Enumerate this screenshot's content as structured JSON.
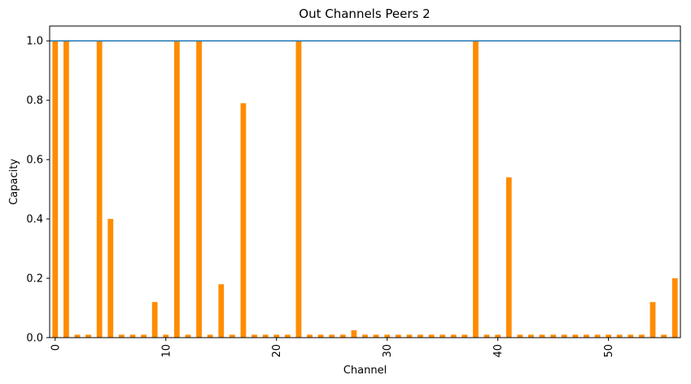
{
  "chart_data": {
    "type": "bar",
    "title": "Out Channels Peers 2",
    "xlabel": "Channel",
    "ylabel": "Capacity",
    "categories": [
      0,
      1,
      2,
      3,
      4,
      5,
      6,
      7,
      8,
      9,
      10,
      11,
      12,
      13,
      14,
      15,
      16,
      17,
      18,
      19,
      20,
      21,
      22,
      23,
      24,
      25,
      26,
      27,
      28,
      29,
      30,
      31,
      32,
      33,
      34,
      35,
      36,
      37,
      38,
      39,
      40,
      41,
      42,
      43,
      44,
      45,
      46,
      47,
      48,
      49,
      50,
      51,
      52,
      53,
      54,
      55,
      56
    ],
    "values": [
      1.0,
      1.0,
      0.01,
      0.01,
      1.0,
      0.4,
      0.01,
      0.01,
      0.01,
      0.12,
      0.01,
      1.0,
      0.01,
      1.0,
      0.01,
      0.18,
      0.01,
      0.79,
      0.01,
      0.01,
      0.01,
      0.01,
      1.0,
      0.01,
      0.01,
      0.01,
      0.01,
      0.025,
      0.01,
      0.01,
      0.01,
      0.01,
      0.01,
      0.01,
      0.01,
      0.01,
      0.01,
      0.01,
      1.0,
      0.01,
      0.01,
      0.54,
      0.01,
      0.01,
      0.01,
      0.01,
      0.01,
      0.01,
      0.01,
      0.01,
      0.01,
      0.01,
      0.01,
      0.01,
      0.12,
      0.01,
      0.2
    ],
    "ylim": [
      0,
      1.05
    ],
    "yticks": [
      0.0,
      0.2,
      0.4,
      0.6,
      0.8,
      1.0
    ],
    "ytick_labels": [
      "0.0",
      "0.2",
      "0.4",
      "0.6",
      "0.8",
      "1.0"
    ],
    "xticks": [
      0,
      10,
      20,
      30,
      40,
      50
    ],
    "xtick_labels": [
      "0",
      "10",
      "20",
      "30",
      "40",
      "50"
    ],
    "reference_line": 1.0,
    "bar_color": "#ff8c00",
    "line_color": "#1f77b4",
    "grid": false
  }
}
